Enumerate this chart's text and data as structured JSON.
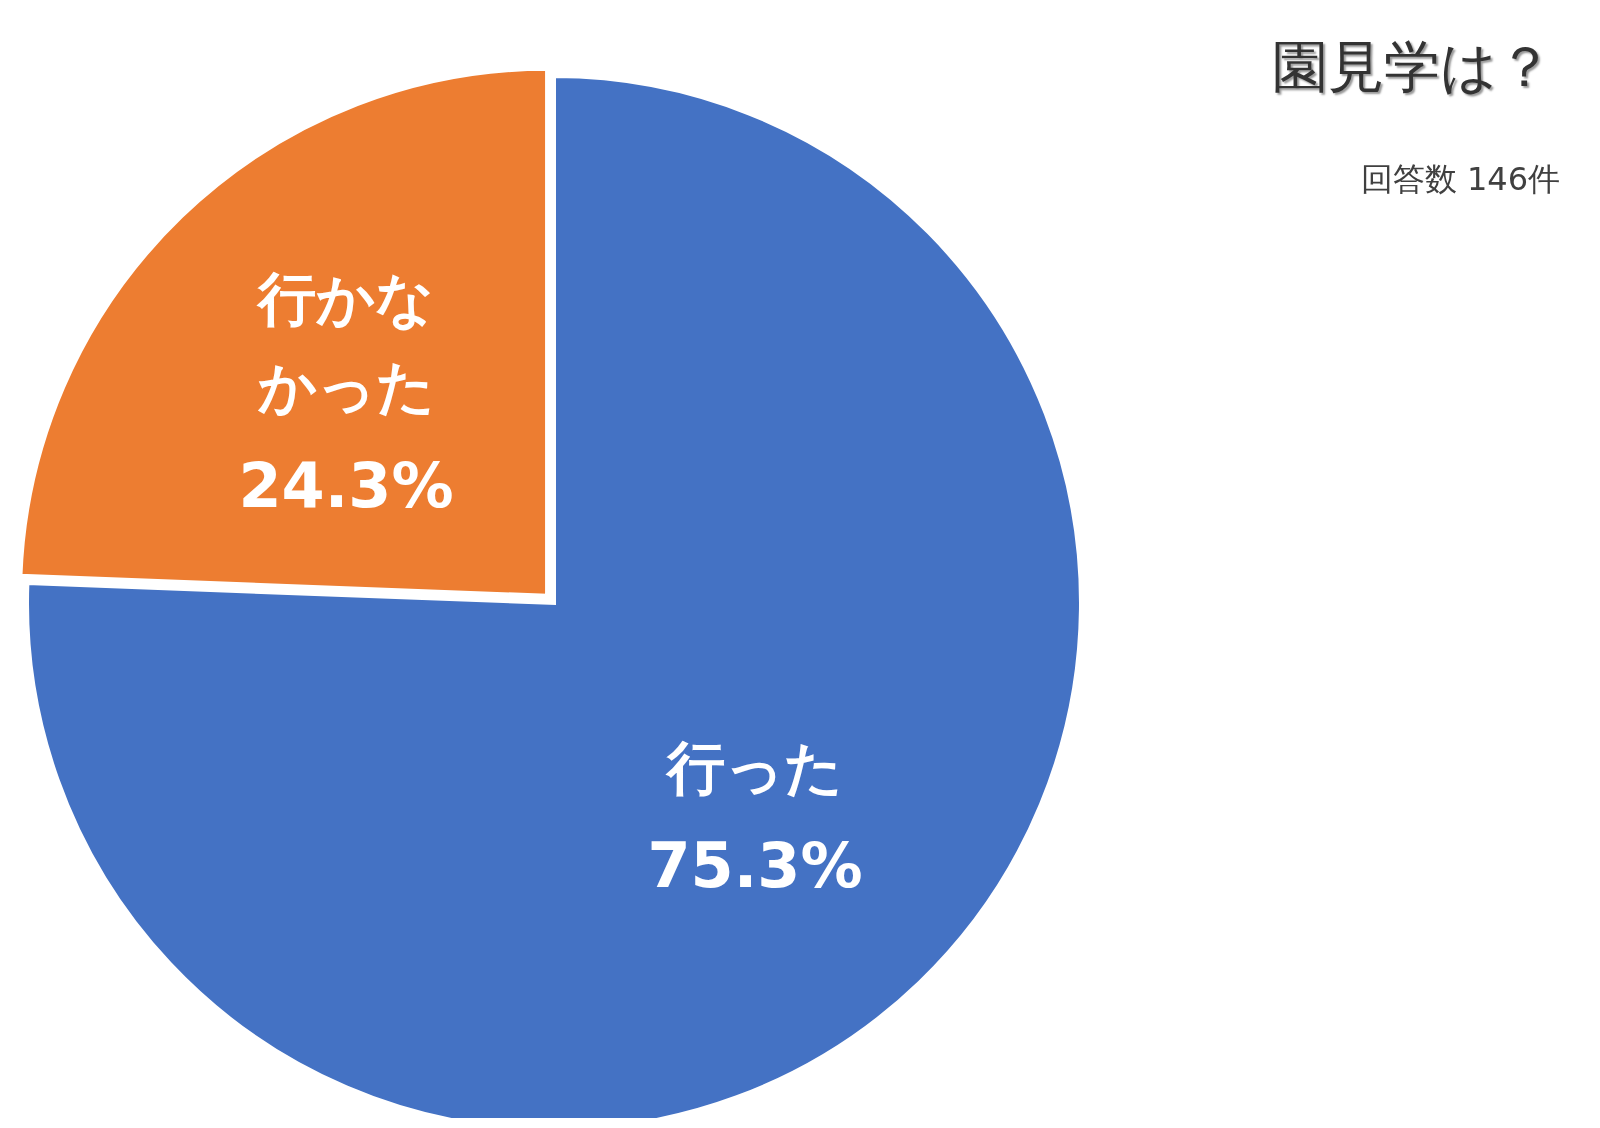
{
  "chart_data": {
    "type": "pie",
    "title": "園見学は？",
    "subtitle": "回答数 146件",
    "categories": [
      "行った",
      "行かなかった"
    ],
    "values": [
      75.3,
      24.3
    ],
    "colors": [
      "#4472c4",
      "#ed7d31"
    ],
    "value_labels": [
      "75.3%",
      "24.3%"
    ]
  }
}
